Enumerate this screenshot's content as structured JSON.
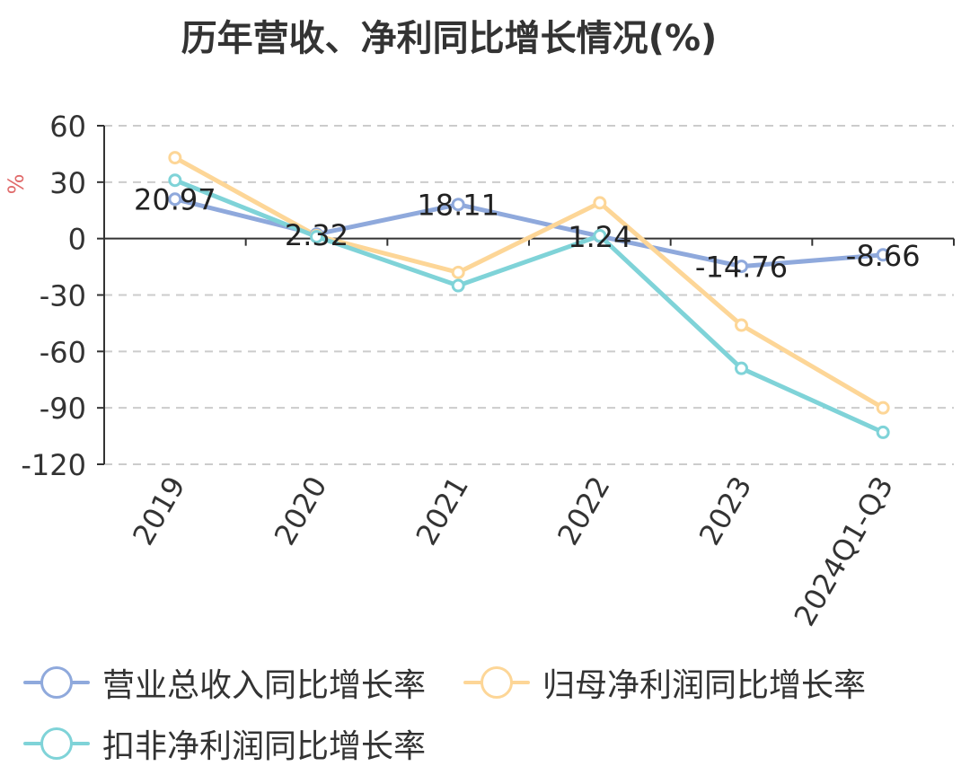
{
  "chart_data": {
    "type": "line",
    "title": "历年营收、净利同比增长情况(%)",
    "ylabel": "%",
    "categories": [
      "2019",
      "2020",
      "2021",
      "2022",
      "2023",
      "2024Q1-Q3"
    ],
    "ylim": [
      -120,
      60
    ],
    "yticks": [
      60,
      30,
      0,
      -30,
      -60,
      -90,
      -120
    ],
    "grid": true,
    "legend_position": "bottom",
    "series": [
      {
        "name": "营业总收入同比增长率",
        "color": "#8fa9dc",
        "values": [
          20.97,
          2.32,
          18.11,
          1.24,
          -14.76,
          -8.66
        ],
        "labels": [
          "20.97",
          "2.32",
          "18.11",
          "1.24",
          "-14.76",
          "-8.66"
        ]
      },
      {
        "name": "归母净利润同比增长率",
        "color": "#fdd697",
        "values": [
          43,
          1.5,
          -18,
          19,
          -46,
          -90
        ]
      },
      {
        "name": "扣非净利润同比增长率",
        "color": "#7fd3d8",
        "values": [
          31,
          1,
          -25,
          1.5,
          -69,
          -103
        ]
      }
    ]
  }
}
